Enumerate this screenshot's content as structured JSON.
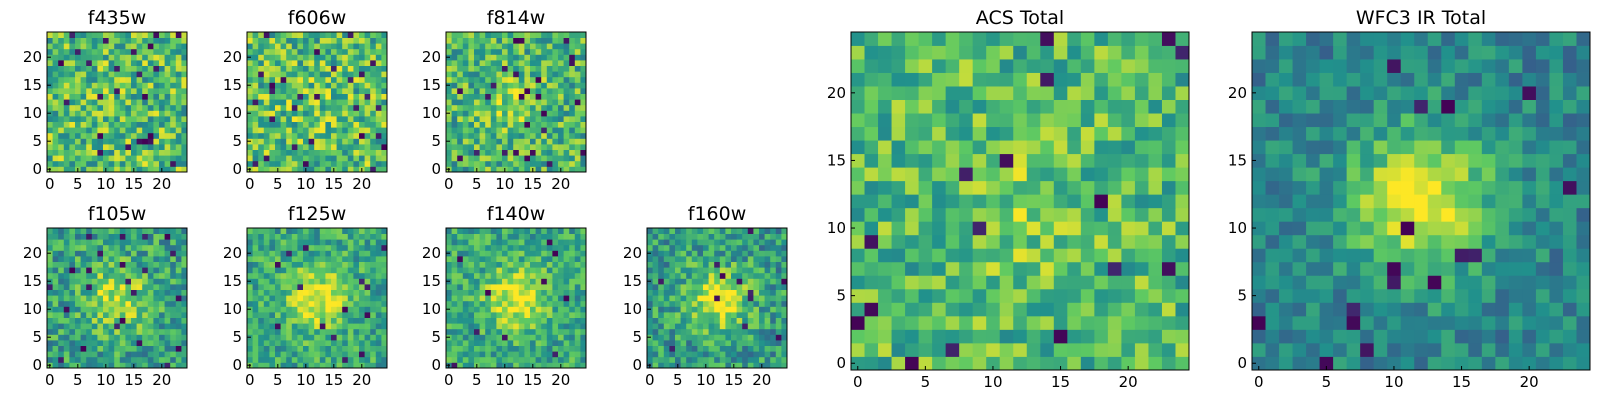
{
  "chart_data": {
    "type": "heatmap",
    "colormap": "viridis",
    "colormap_stops": [
      "#440154",
      "#3b528b",
      "#21918c",
      "#5ec962",
      "#fde725"
    ],
    "panels": [
      {
        "title": "f435w",
        "xticks": [
          "0",
          "5",
          "10",
          "15",
          "20"
        ],
        "yticks": [
          "0",
          "5",
          "10",
          "15",
          "20"
        ],
        "xlim": [
          0,
          24
        ],
        "ylim": [
          0,
          24
        ],
        "grid_size": 25,
        "center_peak": 0.0,
        "contrast": 0.55,
        "level": 0.7,
        "dark_fraction": 0.04
      },
      {
        "title": "f606w",
        "xticks": [
          "0",
          "5",
          "10",
          "15",
          "20"
        ],
        "yticks": [
          "0",
          "5",
          "10",
          "15",
          "20"
        ],
        "xlim": [
          0,
          24
        ],
        "ylim": [
          0,
          24
        ],
        "grid_size": 25,
        "center_peak": 0.05,
        "contrast": 0.55,
        "level": 0.7,
        "dark_fraction": 0.04
      },
      {
        "title": "f814w",
        "xticks": [
          "0",
          "5",
          "10",
          "15",
          "20"
        ],
        "yticks": [
          "0",
          "5",
          "10",
          "15",
          "20"
        ],
        "xlim": [
          0,
          24
        ],
        "ylim": [
          0,
          24
        ],
        "grid_size": 25,
        "center_peak": 0.15,
        "contrast": 0.5,
        "level": 0.66,
        "dark_fraction": 0.03
      },
      {
        "title": "f105w",
        "xticks": [
          "0",
          "5",
          "10",
          "15",
          "20"
        ],
        "yticks": [
          "0",
          "5",
          "10",
          "15",
          "20"
        ],
        "xlim": [
          0,
          24
        ],
        "ylim": [
          0,
          24
        ],
        "grid_size": 25,
        "center_peak": 0.35,
        "contrast": 0.45,
        "level": 0.58,
        "dark_fraction": 0.03
      },
      {
        "title": "f125w",
        "xticks": [
          "0",
          "5",
          "10",
          "15",
          "20"
        ],
        "yticks": [
          "0",
          "5",
          "10",
          "15",
          "20"
        ],
        "xlim": [
          0,
          24
        ],
        "ylim": [
          0,
          24
        ],
        "grid_size": 25,
        "center_peak": 0.4,
        "contrast": 0.4,
        "level": 0.6,
        "dark_fraction": 0.02
      },
      {
        "title": "f140w",
        "xticks": [
          "0",
          "5",
          "10",
          "15",
          "20"
        ],
        "yticks": [
          "0",
          "5",
          "10",
          "15",
          "20"
        ],
        "xlim": [
          0,
          24
        ],
        "ylim": [
          0,
          24
        ],
        "grid_size": 25,
        "center_peak": 0.4,
        "contrast": 0.4,
        "level": 0.6,
        "dark_fraction": 0.02
      },
      {
        "title": "f160w",
        "xticks": [
          "0",
          "5",
          "10",
          "15",
          "20"
        ],
        "yticks": [
          "0",
          "5",
          "10",
          "15",
          "20"
        ],
        "xlim": [
          0,
          24
        ],
        "ylim": [
          0,
          24
        ],
        "grid_size": 25,
        "center_peak": 0.45,
        "contrast": 0.45,
        "level": 0.55,
        "dark_fraction": 0.02
      },
      {
        "title": "ACS Total",
        "xticks": [
          "0",
          "5",
          "10",
          "15",
          "20"
        ],
        "yticks": [
          "0",
          "5",
          "10",
          "15",
          "20"
        ],
        "xlim": [
          0,
          24
        ],
        "ylim": [
          0,
          24
        ],
        "grid_size": 25,
        "center_peak": 0.1,
        "contrast": 0.45,
        "level": 0.68,
        "dark_fraction": 0.025
      },
      {
        "title": "WFC3 IR Total",
        "xticks": [
          "0",
          "5",
          "10",
          "15",
          "20"
        ],
        "yticks": [
          "0",
          "5",
          "10",
          "15",
          "20"
        ],
        "xlim": [
          0,
          24
        ],
        "ylim": [
          0,
          24
        ],
        "grid_size": 25,
        "center_peak": 0.55,
        "contrast": 0.3,
        "level": 0.45,
        "dark_fraction": 0.02
      }
    ]
  }
}
